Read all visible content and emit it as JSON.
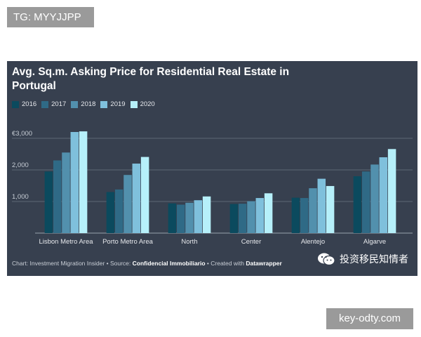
{
  "watermarks": {
    "top": "TG: MYYJJPP",
    "bottom": "key-odty.com"
  },
  "chart_data": {
    "type": "bar",
    "title": "Avg. Sq.m. Asking Price for Residential Real Estate in Portugal",
    "categories": [
      "Lisbon Metro Area",
      "Porto Metro Area",
      "North",
      "Center",
      "Alentejo",
      "Algarve"
    ],
    "series": [
      {
        "name": "2016",
        "color": "#0b4a5e",
        "values": [
          1950,
          1300,
          940,
          920,
          1120,
          1800
        ]
      },
      {
        "name": "2017",
        "color": "#2f6a86",
        "values": [
          2300,
          1380,
          900,
          930,
          1110,
          1950
        ]
      },
      {
        "name": "2018",
        "color": "#5290ad",
        "values": [
          2550,
          1840,
          960,
          1010,
          1420,
          2170
        ]
      },
      {
        "name": "2019",
        "color": "#7fc0dc",
        "values": [
          3200,
          2200,
          1040,
          1110,
          1720,
          2400
        ]
      },
      {
        "name": "2020",
        "color": "#b6f0fa",
        "values": [
          3220,
          2410,
          1160,
          1260,
          1490,
          2660
        ]
      }
    ],
    "ylim": [
      0,
      3000
    ],
    "yticks": [
      {
        "value": 1000,
        "label": "1,000"
      },
      {
        "value": 2000,
        "label": "2,000"
      },
      {
        "value": 3000,
        "label": "€3,000"
      }
    ],
    "grid": true,
    "legend": "top-left",
    "xlabel": "",
    "ylabel": ""
  },
  "footer": {
    "prefix": "Chart: Investment Migration Insider • Source: ",
    "source": "Confidencial Immobiliario",
    "middle": " • Created with ",
    "tool": "Datawrapper"
  },
  "brand": {
    "icon": "wechat-icon",
    "text": "投资移民知情者"
  },
  "colors": {
    "background": "#37404f",
    "grid": "#6b7482",
    "axis_text": "#c6ccd4"
  }
}
